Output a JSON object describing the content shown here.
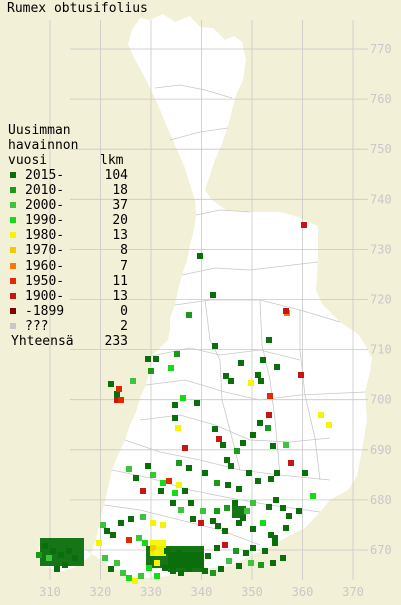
{
  "title": "Rumex obtusifolius",
  "legend": {
    "heading_lines": [
      "Uusimman",
      "havainnon",
      "vuosi"
    ],
    "count_heading": "lkm",
    "rows": [
      {
        "period": "2015-",
        "count": "104",
        "color": "#0a6e0a"
      },
      {
        "period": "2010-",
        "count": "18",
        "color": "#1a9a1a"
      },
      {
        "period": "2000-",
        "count": "37",
        "color": "#3cc43c"
      },
      {
        "period": "1990-",
        "count": "20",
        "color": "#12dc12"
      },
      {
        "period": "1980-",
        "count": "13",
        "color": "#f5f500"
      },
      {
        "period": "1970-",
        "count": "8",
        "color": "#f5c800"
      },
      {
        "period": "1960-",
        "count": "7",
        "color": "#ff7800"
      },
      {
        "period": "1950-",
        "count": "11",
        "color": "#e62800"
      },
      {
        "period": "1900-",
        "count": "13",
        "color": "#c81414"
      },
      {
        "period": "-1899",
        "count": "0",
        "color": "#820000"
      },
      {
        "period": "???",
        "count": "2",
        "color": "#c8c8c8"
      }
    ],
    "total_label": "Yhteensä",
    "total_count": "233"
  },
  "axes": {
    "y_ticks": [
      "770",
      "760",
      "750",
      "740",
      "730",
      "720",
      "710",
      "700",
      "690",
      "680",
      "670"
    ],
    "x_ticks": [
      "310",
      "320",
      "330",
      "340",
      "350",
      "360",
      "370"
    ]
  },
  "colors": {
    "background": "#f2f0d6",
    "land": "#ffffff",
    "grid": "#c8c8c8"
  }
}
